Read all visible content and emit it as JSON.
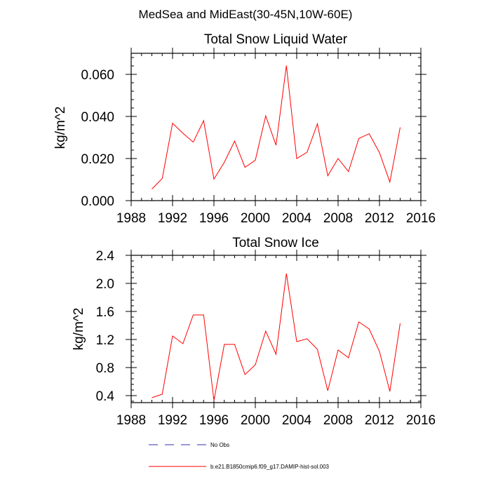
{
  "figure": {
    "suptitle": "MedSea and MidEast(30-45N,10W-60E)",
    "colors": {
      "data_line": "#ff0000",
      "obs_line": "#3333aa",
      "axes": "#000000"
    }
  },
  "legend": {
    "entries": [
      {
        "label": "No Obs",
        "style": "dashed",
        "color": "#3333aa"
      },
      {
        "label": "b.e21.B1850cmip6.f09_g17.DAMIP-hist-sol.003",
        "style": "solid",
        "color": "#ff0000"
      }
    ]
  },
  "chart_data": [
    {
      "type": "line",
      "title": "Total Snow Liquid Water",
      "xlabel": "",
      "ylabel": "kg/m^2",
      "xlim": [
        1988,
        2016
      ],
      "ylim": [
        0.0,
        0.07
      ],
      "xticks": [
        "1988",
        "1992",
        "1996",
        "2000",
        "2004",
        "2008",
        "2012",
        "2016"
      ],
      "yticks": [
        "0.000",
        "0.020",
        "0.040",
        "0.060"
      ],
      "grid": false,
      "series": [
        {
          "name": "b.e21.B1850cmip6.f09_g17.DAMIP-hist-sol.003",
          "color": "#ff0000",
          "x": [
            1990,
            1991,
            1992,
            1993,
            1994,
            1995,
            1996,
            1997,
            1998,
            1999,
            2000,
            2001,
            2002,
            2003,
            2004,
            2005,
            2006,
            2007,
            2008,
            2009,
            2010,
            2011,
            2012,
            2013,
            2014
          ],
          "y": [
            0.0055,
            0.0105,
            0.0368,
            0.032,
            0.0278,
            0.038,
            0.0102,
            0.0182,
            0.0283,
            0.0158,
            0.0192,
            0.0403,
            0.0263,
            0.0642,
            0.02,
            0.023,
            0.0365,
            0.0118,
            0.02,
            0.0138,
            0.0295,
            0.0318,
            0.0228,
            0.0088,
            0.0348
          ]
        }
      ]
    },
    {
      "type": "line",
      "title": "Total Snow Ice",
      "xlabel": "",
      "ylabel": "kg/m^2",
      "xlim": [
        1988,
        2016
      ],
      "ylim": [
        0.3,
        2.4
      ],
      "xticks": [
        "1988",
        "1992",
        "1996",
        "2000",
        "2004",
        "2008",
        "2012",
        "2016"
      ],
      "yticks": [
        "0.4",
        "0.8",
        "1.2",
        "1.6",
        "2.0",
        "2.4"
      ],
      "grid": false,
      "series": [
        {
          "name": "b.e21.B1850cmip6.f09_g17.DAMIP-hist-sol.003",
          "color": "#ff0000",
          "x": [
            1990,
            1991,
            1992,
            1993,
            1994,
            1995,
            1996,
            1997,
            1998,
            1999,
            2000,
            2001,
            2002,
            2003,
            2004,
            2005,
            2006,
            2007,
            2008,
            2009,
            2010,
            2011,
            2012,
            2013,
            2014
          ],
          "y": [
            0.37,
            0.42,
            1.25,
            1.14,
            1.55,
            1.55,
            0.33,
            1.13,
            1.13,
            0.7,
            0.84,
            1.32,
            0.99,
            2.14,
            1.17,
            1.21,
            1.06,
            0.47,
            1.05,
            0.94,
            1.45,
            1.35,
            1.03,
            0.46,
            1.43
          ]
        }
      ]
    }
  ]
}
